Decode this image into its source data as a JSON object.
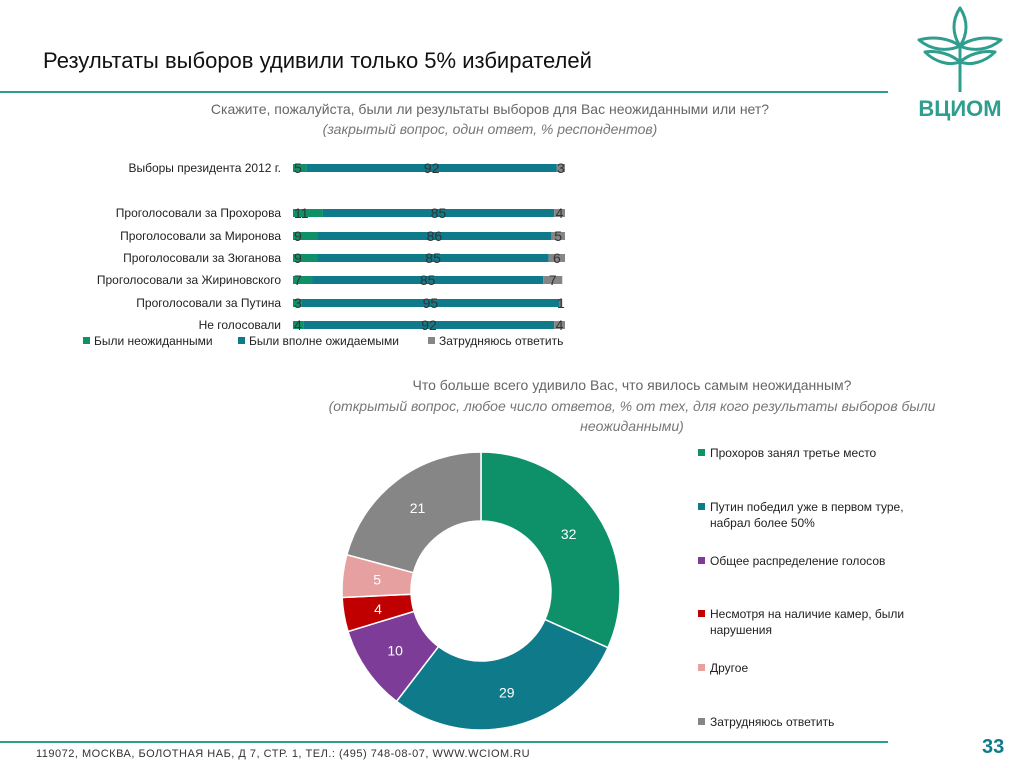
{
  "title": "Результаты выборов удивили только 5% избирателей",
  "logo_text": "ВЦИОМ",
  "question1": {
    "main": "Скажите, пожалуйста, были ли результаты выборов для Вас неожиданными или нет?",
    "sub": "(закрытый вопрос, один ответ, % респондентов)"
  },
  "question2": {
    "main": "Что больше всего удивило Вас, что явилось самым неожиданным?",
    "sub": "(открытый вопрос, любое число ответов, % от тех, для кого результаты выборов были неожиданными)"
  },
  "footer": "119072, МОСКВА, БОЛОТНАЯ НАБ, Д 7, СТР. 1, ТЕЛ.: (495) 748-08-07, WWW.WCIOM.RU",
  "page_number": "33",
  "colors": {
    "accent": "#2f9e8e",
    "unexpected": "#0e9168",
    "expected": "#0e7a8a",
    "unsure": "#868686"
  },
  "chart_data": [
    {
      "type": "bar",
      "orientation": "horizontal",
      "stacked": true,
      "categories": [
        "Выборы президента 2012 г.",
        "Проголосовали за Прохорова",
        "Проголосовали за Миронова",
        "Проголосовали за Зюганова",
        "Проголосовали за Жириновского",
        "Проголосовали за Путина",
        "Не голосовали"
      ],
      "series": [
        {
          "name": "Были неожиданными",
          "color": "#0e9168",
          "values": [
            5,
            11,
            9,
            9,
            7,
            3,
            4
          ]
        },
        {
          "name": "Были вполне ожидаемыми",
          "color": "#0e7a8a",
          "values": [
            92,
            85,
            86,
            85,
            85,
            95,
            92
          ]
        },
        {
          "name": "Затрудняюсь ответить",
          "color": "#868686",
          "values": [
            3,
            4,
            5,
            6,
            7,
            1,
            4
          ]
        }
      ],
      "xlim": [
        0,
        100
      ],
      "legend": "bottom"
    },
    {
      "type": "pie",
      "donut": true,
      "slices": [
        {
          "label": "Прохоров занял третье место",
          "value": 32,
          "color": "#0e9168"
        },
        {
          "label": "Путин победил уже в первом туре, набрал более 50%",
          "value": 29,
          "color": "#0e7a8a"
        },
        {
          "label": "Общее распределение голосов",
          "value": 10,
          "color": "#7d3c98"
        },
        {
          "label": "Несмотря на наличие камер, были нарушения",
          "value": 4,
          "color": "#c00000"
        },
        {
          "label": "Другое",
          "value": 5,
          "color": "#e6a0a0"
        },
        {
          "label": "Затрудняюсь ответить",
          "value": 21,
          "color": "#868686"
        }
      ],
      "legend": "right"
    }
  ]
}
